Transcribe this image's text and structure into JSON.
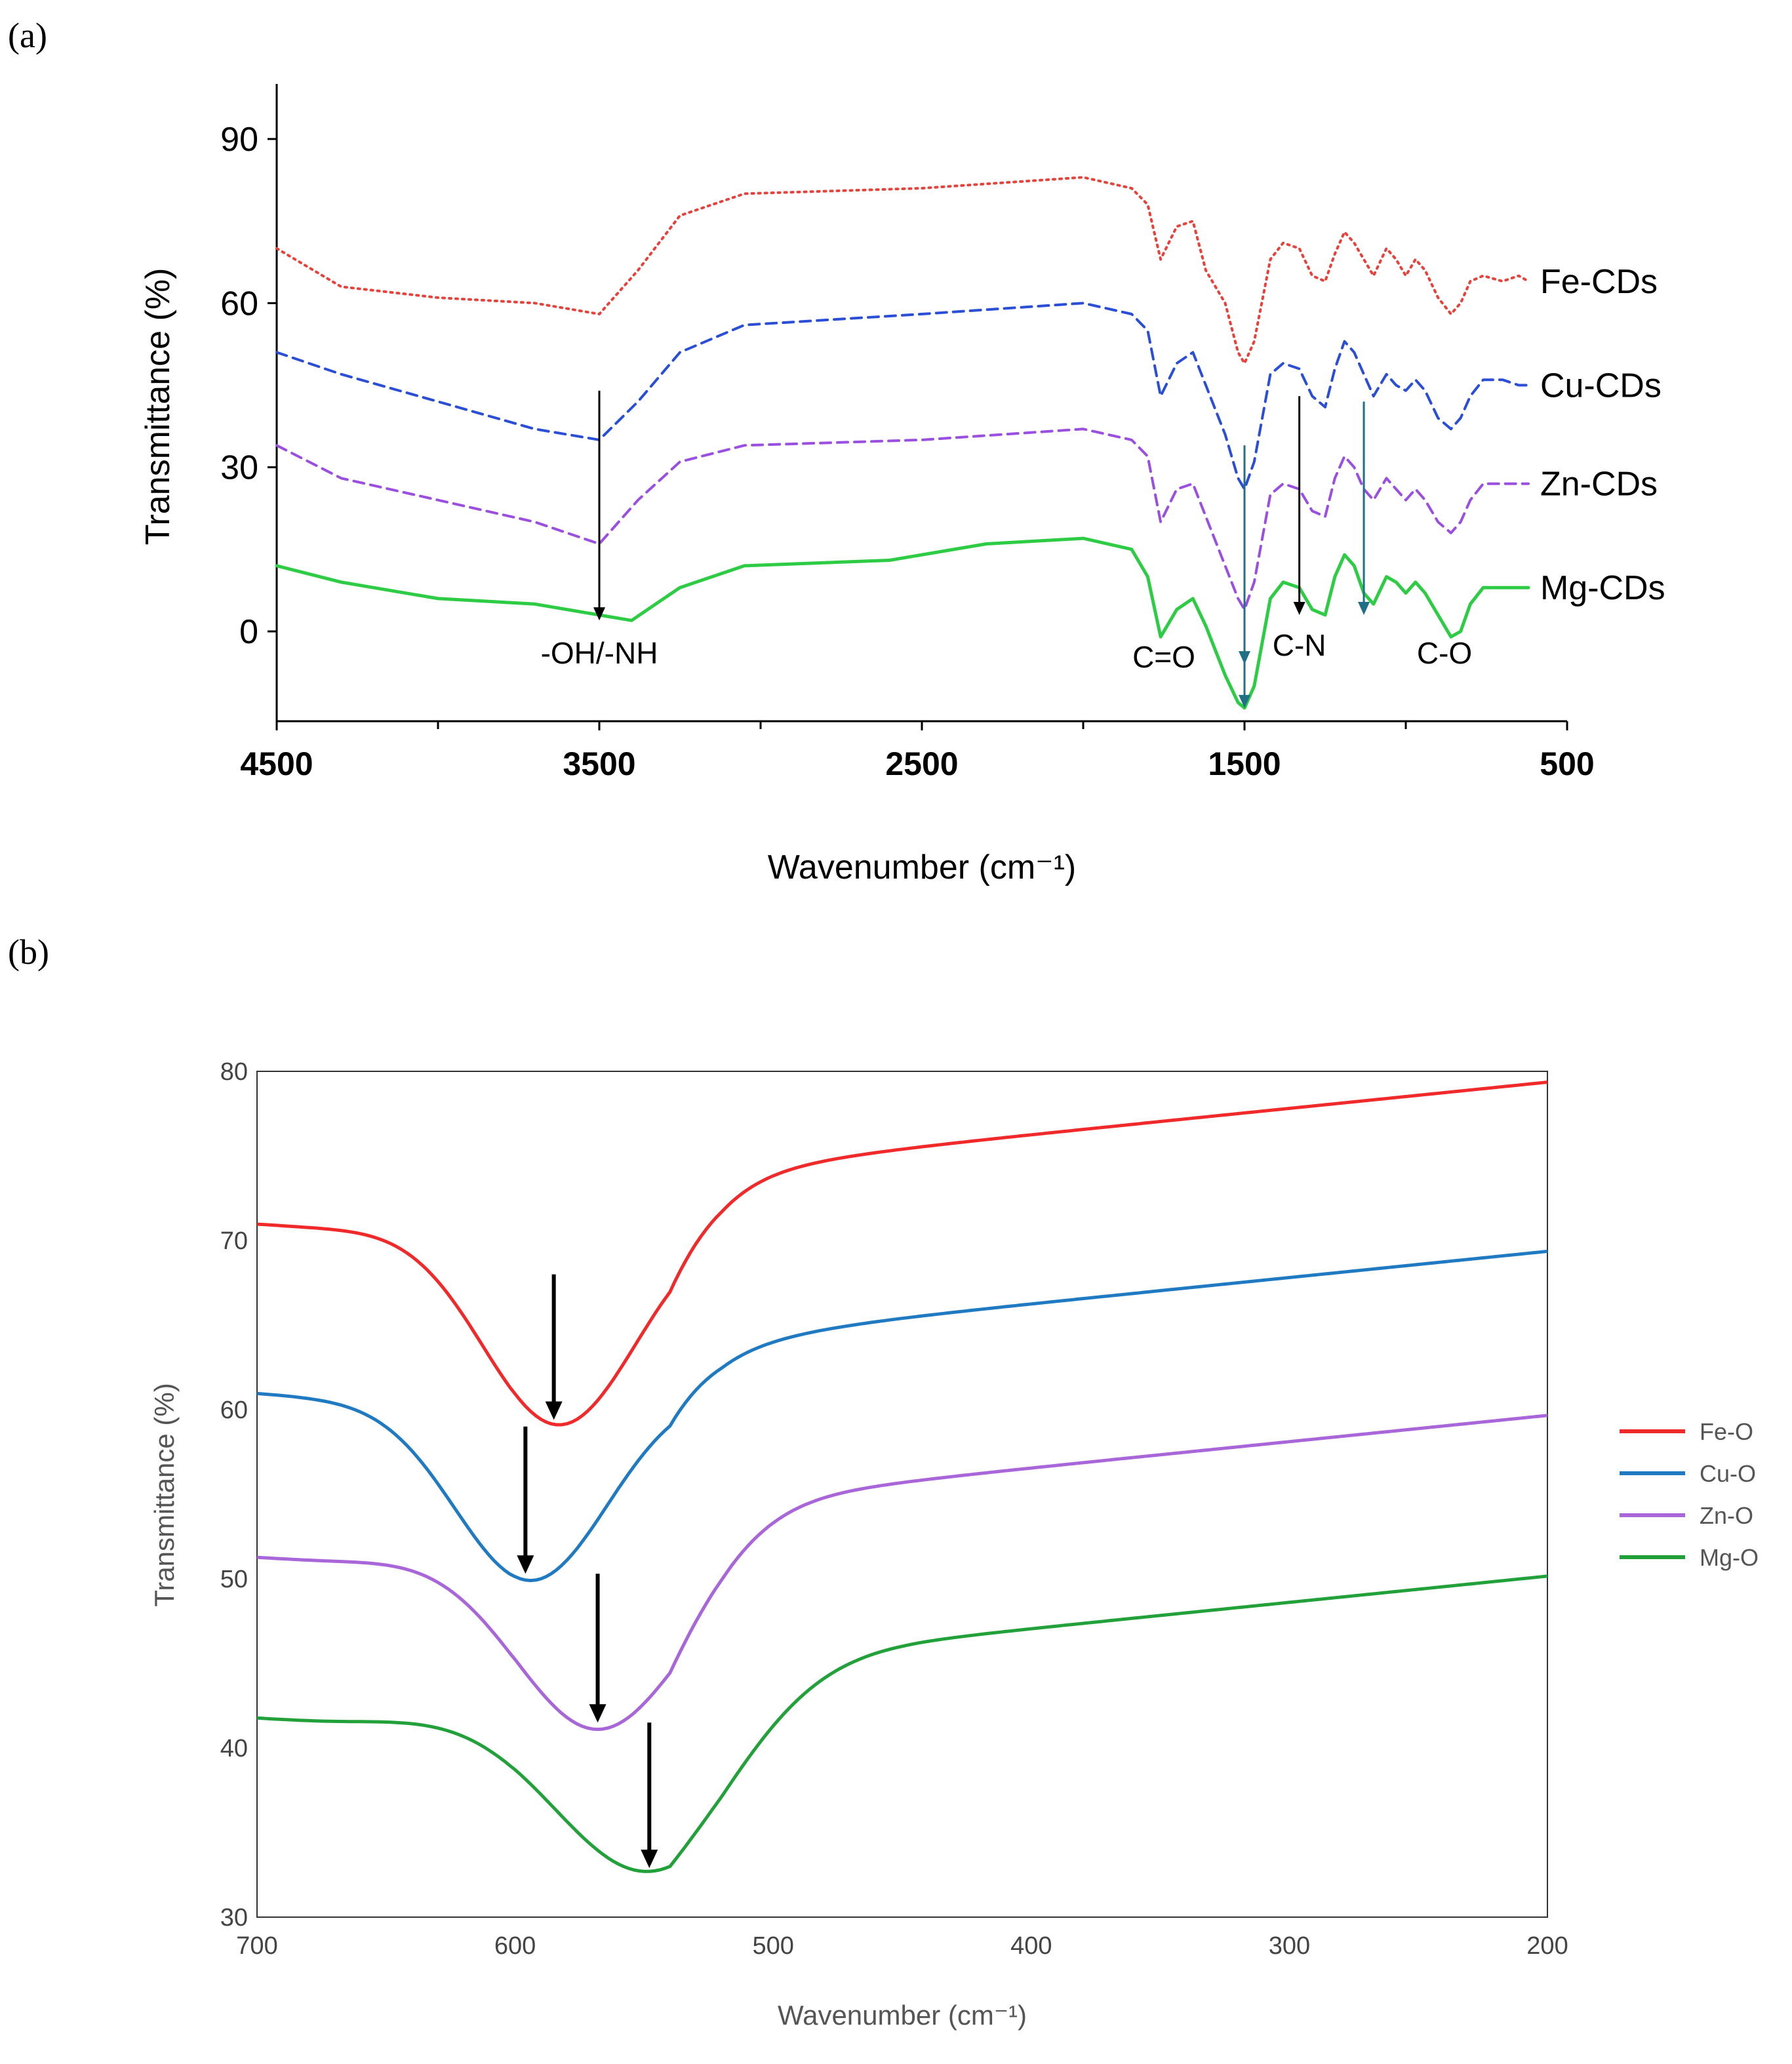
{
  "chart_data": [
    {
      "panel": "(a)",
      "type": "line",
      "xlabel": "Wavenumber (cm⁻¹)",
      "ylabel": "Transmittance (%)",
      "xlim": [
        4500,
        500
      ],
      "ylim": [
        -15,
        100
      ],
      "xticks": [
        4500,
        3500,
        2500,
        1500,
        500
      ],
      "yticks": [
        0,
        30,
        60,
        90
      ],
      "grid": false,
      "legend": "inline-right",
      "series": [
        {
          "name": "Fe-CDs",
          "color": "#e8413a",
          "dash": "dotted",
          "points": [
            [
              4500,
              70
            ],
            [
              4300,
              63
            ],
            [
              4000,
              61
            ],
            [
              3700,
              60
            ],
            [
              3500,
              58
            ],
            [
              3380,
              66
            ],
            [
              3250,
              76
            ],
            [
              3050,
              80
            ],
            [
              2500,
              81
            ],
            [
              2000,
              83
            ],
            [
              1850,
              81
            ],
            [
              1800,
              78
            ],
            [
              1760,
              68
            ],
            [
              1710,
              74
            ],
            [
              1660,
              75
            ],
            [
              1620,
              66
            ],
            [
              1560,
              60
            ],
            [
              1520,
              51
            ],
            [
              1500,
              49
            ],
            [
              1470,
              53
            ],
            [
              1420,
              68
            ],
            [
              1380,
              71
            ],
            [
              1330,
              70
            ],
            [
              1290,
              65
            ],
            [
              1250,
              64
            ],
            [
              1220,
              69
            ],
            [
              1190,
              73
            ],
            [
              1160,
              71
            ],
            [
              1130,
              68
            ],
            [
              1100,
              65
            ],
            [
              1060,
              70
            ],
            [
              1030,
              68
            ],
            [
              1000,
              65
            ],
            [
              970,
              68
            ],
            [
              940,
              66
            ],
            [
              900,
              61
            ],
            [
              860,
              58
            ],
            [
              830,
              60
            ],
            [
              800,
              64
            ],
            [
              760,
              65
            ],
            [
              700,
              64
            ],
            [
              650,
              65
            ],
            [
              620,
              64
            ]
          ]
        },
        {
          "name": "Cu-CDs",
          "color": "#2a4fd6",
          "dash": "dashed",
          "points": [
            [
              4500,
              51
            ],
            [
              4300,
              47
            ],
            [
              4000,
              42
            ],
            [
              3700,
              37
            ],
            [
              3500,
              35
            ],
            [
              3380,
              42
            ],
            [
              3250,
              51
            ],
            [
              3050,
              56
            ],
            [
              2500,
              58
            ],
            [
              2000,
              60
            ],
            [
              1850,
              58
            ],
            [
              1800,
              55
            ],
            [
              1760,
              43
            ],
            [
              1710,
              49
            ],
            [
              1660,
              51
            ],
            [
              1620,
              45
            ],
            [
              1560,
              36
            ],
            [
              1520,
              28
            ],
            [
              1500,
              26
            ],
            [
              1470,
              31
            ],
            [
              1420,
              47
            ],
            [
              1380,
              49
            ],
            [
              1330,
              48
            ],
            [
              1290,
              43
            ],
            [
              1250,
              41
            ],
            [
              1220,
              48
            ],
            [
              1190,
              53
            ],
            [
              1160,
              51
            ],
            [
              1130,
              47
            ],
            [
              1100,
              43
            ],
            [
              1060,
              47
            ],
            [
              1030,
              45
            ],
            [
              1000,
              44
            ],
            [
              970,
              46
            ],
            [
              940,
              44
            ],
            [
              900,
              39
            ],
            [
              860,
              37
            ],
            [
              830,
              39
            ],
            [
              800,
              43
            ],
            [
              760,
              46
            ],
            [
              700,
              46
            ],
            [
              650,
              45
            ],
            [
              620,
              45
            ]
          ]
        },
        {
          "name": "Zn-CDs",
          "color": "#9a4fe0",
          "dash": "dashed",
          "points": [
            [
              4500,
              34
            ],
            [
              4300,
              28
            ],
            [
              4000,
              24
            ],
            [
              3700,
              20
            ],
            [
              3500,
              16
            ],
            [
              3380,
              24
            ],
            [
              3250,
              31
            ],
            [
              3050,
              34
            ],
            [
              2500,
              35
            ],
            [
              2000,
              37
            ],
            [
              1850,
              35
            ],
            [
              1800,
              32
            ],
            [
              1760,
              20
            ],
            [
              1710,
              26
            ],
            [
              1660,
              27
            ],
            [
              1620,
              21
            ],
            [
              1560,
              12
            ],
            [
              1520,
              6
            ],
            [
              1500,
              4
            ],
            [
              1470,
              9
            ],
            [
              1420,
              25
            ],
            [
              1380,
              27
            ],
            [
              1330,
              26
            ],
            [
              1290,
              22
            ],
            [
              1250,
              21
            ],
            [
              1220,
              28
            ],
            [
              1190,
              32
            ],
            [
              1160,
              30
            ],
            [
              1130,
              26
            ],
            [
              1100,
              24
            ],
            [
              1060,
              28
            ],
            [
              1030,
              26
            ],
            [
              1000,
              24
            ],
            [
              970,
              26
            ],
            [
              940,
              24
            ],
            [
              900,
              20
            ],
            [
              860,
              18
            ],
            [
              830,
              20
            ],
            [
              800,
              24
            ],
            [
              760,
              27
            ],
            [
              700,
              27
            ],
            [
              650,
              27
            ],
            [
              620,
              27
            ]
          ]
        },
        {
          "name": "Mg-CDs",
          "color": "#2ecc45",
          "dash": "solid",
          "points": [
            [
              4500,
              12
            ],
            [
              4300,
              9
            ],
            [
              4000,
              6
            ],
            [
              3700,
              5
            ],
            [
              3500,
              3
            ],
            [
              3400,
              2
            ],
            [
              3250,
              8
            ],
            [
              3050,
              12
            ],
            [
              2600,
              13
            ],
            [
              2300,
              16
            ],
            [
              2000,
              17
            ],
            [
              1850,
              15
            ],
            [
              1800,
              10
            ],
            [
              1760,
              -1
            ],
            [
              1710,
              4
            ],
            [
              1660,
              6
            ],
            [
              1620,
              1
            ],
            [
              1560,
              -8
            ],
            [
              1520,
              -13
            ],
            [
              1500,
              -14
            ],
            [
              1470,
              -10
            ],
            [
              1420,
              6
            ],
            [
              1380,
              9
            ],
            [
              1330,
              8
            ],
            [
              1290,
              4
            ],
            [
              1250,
              3
            ],
            [
              1220,
              10
            ],
            [
              1190,
              14
            ],
            [
              1160,
              12
            ],
            [
              1130,
              7
            ],
            [
              1100,
              5
            ],
            [
              1060,
              10
            ],
            [
              1030,
              9
            ],
            [
              1000,
              7
            ],
            [
              970,
              9
            ],
            [
              940,
              7
            ],
            [
              900,
              3
            ],
            [
              860,
              -1
            ],
            [
              830,
              0
            ],
            [
              800,
              5
            ],
            [
              760,
              8
            ],
            [
              700,
              8
            ],
            [
              650,
              8
            ],
            [
              620,
              8
            ]
          ]
        }
      ],
      "annotations": [
        {
          "text": "-OH/-NH",
          "x": 3500
        },
        {
          "text": "C=O",
          "x": 1750
        },
        {
          "text": "C-N",
          "x": 1330
        },
        {
          "text": "C-O",
          "x": 880
        }
      ]
    },
    {
      "panel": "(b)",
      "type": "line",
      "xlabel": "Wavenumber (cm⁻¹)",
      "ylabel": "Transmittance (%)",
      "xlim": [
        700,
        200
      ],
      "ylim": [
        30,
        80
      ],
      "xticks": [
        700,
        600,
        500,
        400,
        300,
        200
      ],
      "yticks": [
        30,
        40,
        50,
        60,
        70,
        80
      ],
      "grid": false,
      "legend": "right",
      "series": [
        {
          "name": "Fe-O",
          "color": "#f02a2a",
          "base": 71.2,
          "peak": 583,
          "depth": 12.1,
          "width": 42
        },
        {
          "name": "Cu-O",
          "color": "#1f7ac2",
          "base": 61.2,
          "peak": 594,
          "depth": 11.3,
          "width": 42
        },
        {
          "name": "Zn-O",
          "color": "#a866d9",
          "base": 51.5,
          "peak": 568,
          "depth": 10.4,
          "width": 45
        },
        {
          "name": "Mg-O",
          "color": "#22a13a",
          "base": 42.0,
          "peak": 549,
          "depth": 9.3,
          "width": 50
        }
      ],
      "arrows": [
        {
          "x": 585,
          "from": 68,
          "to": 59.4
        },
        {
          "x": 596,
          "from": 59,
          "to": 50.3
        },
        {
          "x": 568,
          "from": 50.3,
          "to": 41.5
        },
        {
          "x": 548,
          "from": 41.5,
          "to": 32.9
        }
      ]
    }
  ],
  "labels": {
    "panel_a": "(a)",
    "panel_b": "(b)"
  }
}
